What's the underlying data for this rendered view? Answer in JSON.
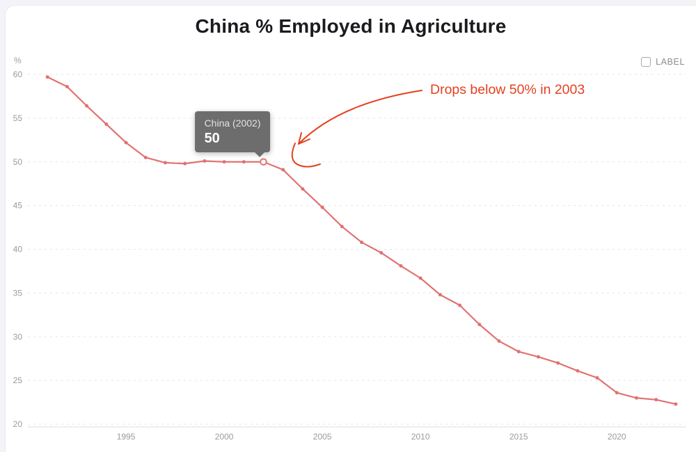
{
  "header": {
    "title": "China % Employed in Agriculture"
  },
  "legend": {
    "label": "LABEL",
    "checked": false
  },
  "annotation": {
    "text": "Drops below 50% in 2003",
    "color": "#e5401f"
  },
  "tooltip": {
    "label": "China (2002)",
    "value": "50",
    "year": 2002
  },
  "colors": {
    "line": "#e17272",
    "grid": "#e5e5ea",
    "tick_text": "#9a9aa2",
    "tooltip_bg": "#6d6d6d"
  },
  "chart_data": {
    "type": "line",
    "title": "China % Employed in Agriculture",
    "xlabel": "",
    "ylabel": "%",
    "grid": "horizontal-dashed",
    "legend_position": "top-right",
    "xlim": [
      1990,
      2023.5
    ],
    "ylim": [
      20,
      60
    ],
    "x_ticks": [
      1995,
      2000,
      2005,
      2010,
      2015,
      2020
    ],
    "y_ticks": [
      20,
      25,
      30,
      35,
      40,
      45,
      50,
      55,
      60
    ],
    "series": [
      {
        "name": "China",
        "color": "#e17272",
        "x": [
          1991,
          1992,
          1993,
          1994,
          1995,
          1996,
          1997,
          1998,
          1999,
          2000,
          2001,
          2002,
          2003,
          2004,
          2005,
          2006,
          2007,
          2008,
          2009,
          2010,
          2011,
          2012,
          2013,
          2014,
          2015,
          2016,
          2017,
          2018,
          2019,
          2020,
          2021,
          2022,
          2023
        ],
        "values": [
          59.7,
          58.6,
          56.4,
          54.3,
          52.2,
          50.5,
          49.9,
          49.8,
          50.1,
          50.0,
          50.0,
          50.0,
          49.1,
          46.9,
          44.8,
          42.6,
          40.8,
          39.6,
          38.1,
          36.7,
          34.8,
          33.6,
          31.4,
          29.5,
          28.3,
          27.7,
          27.0,
          26.1,
          25.3,
          23.6,
          23.0,
          22.8,
          22.3
        ]
      }
    ],
    "highlight": {
      "year": 2002,
      "value": 50
    }
  }
}
